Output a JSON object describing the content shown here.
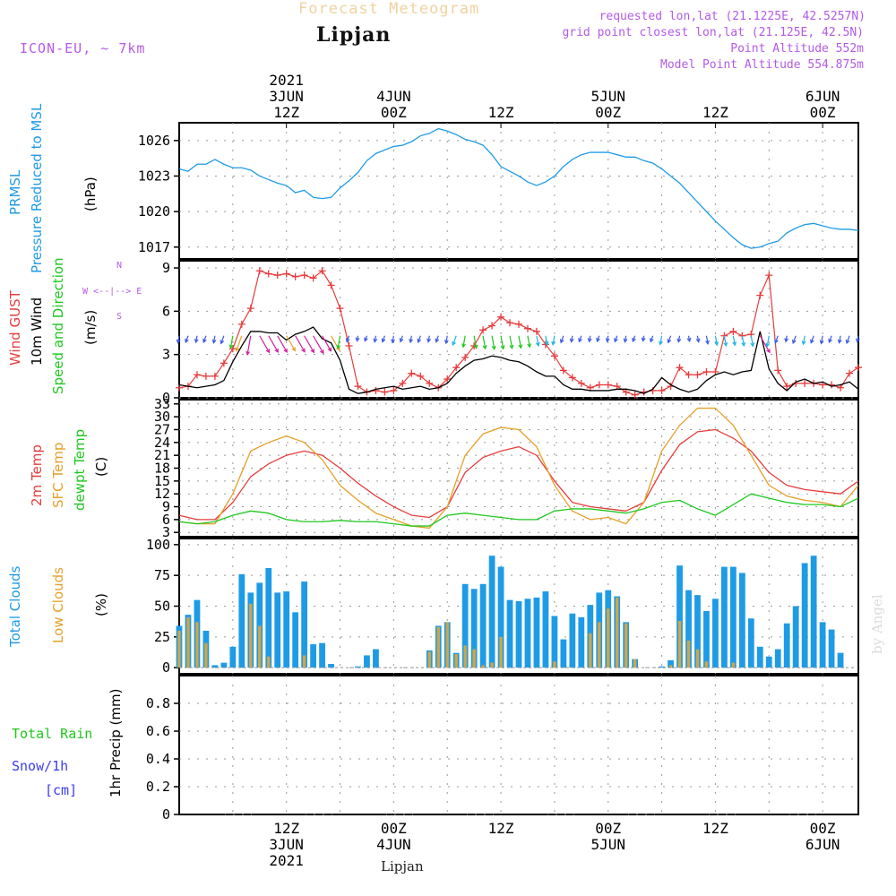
{
  "header": {
    "title": "Forecast Meteogram",
    "location": "Lipjan",
    "model": "ICON-EU, ~ 7km",
    "requested": "requested lon,lat (21.1225E, 42.5257N)",
    "closest": "grid point closest lon,lat (21.125E, 42.5N)",
    "altitude": "Point Altitude 552m",
    "model_altitude": "Model Point Altitude 554.875m",
    "watermark": "by Angel",
    "footer_location": "Lipjan"
  },
  "colors": {
    "pressure": "#1e9be6",
    "gust": "#e63c3c",
    "wind": "#000000",
    "temp2m": "#e63c3c",
    "sfc": "#e6a028",
    "dewpt": "#1ec81e",
    "total_clouds": "#1e9be6",
    "low_clouds": "#d2a546",
    "purple": "#b45ae6",
    "rain": "#1ec81e",
    "snow": "#3c3cf0"
  },
  "time_axis": {
    "top_labels": [
      {
        "t": 12,
        "lines": [
          "2021",
          "3JUN",
          "12Z"
        ]
      },
      {
        "t": 24,
        "lines": [
          "4JUN",
          "00Z"
        ]
      },
      {
        "t": 36,
        "lines": [
          "12Z"
        ]
      },
      {
        "t": 48,
        "lines": [
          "5JUN",
          "00Z"
        ]
      },
      {
        "t": 60,
        "lines": [
          "12Z"
        ]
      },
      {
        "t": 72,
        "lines": [
          "6JUN",
          "00Z"
        ]
      }
    ],
    "bottom_labels": [
      {
        "t": 12,
        "lines": [
          "12Z",
          "3JUN",
          "2021"
        ]
      },
      {
        "t": 24,
        "lines": [
          "00Z",
          "4JUN"
        ]
      },
      {
        "t": 36,
        "lines": [
          "12Z"
        ]
      },
      {
        "t": 48,
        "lines": [
          "00Z",
          "5JUN"
        ]
      },
      {
        "t": 60,
        "lines": [
          "12Z"
        ]
      },
      {
        "t": 72,
        "lines": [
          "00Z",
          "6JUN"
        ]
      }
    ]
  },
  "panel_labels": {
    "pressure": [
      "PRMSL",
      "Pressure Reduced to MSL",
      "(hPa)"
    ],
    "wind": [
      "Wind GUST",
      "10m Wind",
      "Speed and Direction",
      "(m/s)"
    ],
    "compass": [
      "N",
      "W <--|--> E",
      "S"
    ],
    "temp": [
      "2m Temp",
      "SFC Temp",
      "dewpt Temp",
      "(C)"
    ],
    "clouds": [
      "Total Clouds",
      "Low Clouds",
      "(%)"
    ],
    "precip_axis": "1hr Precip (mm)",
    "rain": "Total  Rain",
    "snow": "Snow/1h",
    "snow_unit": "[cm]"
  },
  "chart_data": [
    {
      "type": "line",
      "name": "PRMSL",
      "ylabel": "(hPa)",
      "ylim": [
        1016,
        1027.5
      ],
      "yticks": [
        1017,
        1020,
        1023,
        1026
      ],
      "x_unit": "hours from 3JUN 00Z",
      "x": [
        0,
        1,
        2,
        3,
        4,
        5,
        6,
        7,
        8,
        9,
        10,
        11,
        12,
        13,
        14,
        15,
        16,
        17,
        18,
        19,
        20,
        21,
        22,
        23,
        24,
        25,
        26,
        27,
        28,
        29,
        30,
        31,
        32,
        33,
        34,
        35,
        36,
        37,
        38,
        39,
        40,
        41,
        42,
        43,
        44,
        45,
        46,
        47,
        48,
        49,
        50,
        51,
        52,
        53,
        54,
        55,
        56,
        57,
        58,
        59,
        60,
        61,
        62,
        63,
        64,
        65,
        66,
        67,
        68,
        69,
        70,
        71,
        72,
        73,
        74,
        75,
        76
      ],
      "values": [
        1023.6,
        1023.4,
        1024.0,
        1024.0,
        1024.4,
        1024.0,
        1023.7,
        1023.7,
        1023.5,
        1023.0,
        1022.7,
        1022.4,
        1022.2,
        1021.6,
        1021.8,
        1021.2,
        1021.1,
        1021.2,
        1022.0,
        1022.6,
        1023.3,
        1024.3,
        1024.9,
        1025.2,
        1025.5,
        1025.6,
        1025.9,
        1026.4,
        1026.6,
        1027.0,
        1026.8,
        1026.5,
        1026.1,
        1025.9,
        1025.6,
        1024.8,
        1023.8,
        1023.4,
        1023.0,
        1022.5,
        1022.2,
        1022.5,
        1023.0,
        1023.8,
        1024.4,
        1024.8,
        1025.0,
        1025.0,
        1025.0,
        1024.8,
        1024.6,
        1024.6,
        1024.3,
        1024.1,
        1023.6,
        1023.0,
        1022.4,
        1021.6,
        1020.8,
        1020.0,
        1019.2,
        1018.5,
        1017.8,
        1017.2,
        1016.9,
        1017.0,
        1017.3,
        1017.5,
        1018.2,
        1018.6,
        1018.9,
        1019.0,
        1018.8,
        1018.6,
        1018.5,
        1018.5,
        1018.4
      ]
    },
    {
      "type": "line",
      "name": "Wind",
      "ylabel": "(m/s)",
      "ylim": [
        0,
        9.5
      ],
      "yticks": [
        0,
        3,
        6,
        9
      ],
      "x_unit": "hours from 3JUN 00Z",
      "series": [
        {
          "name": "Wind GUST",
          "marker": "+",
          "x": [
            0,
            1,
            2,
            3,
            4,
            5,
            6,
            7,
            8,
            9,
            10,
            11,
            12,
            13,
            14,
            15,
            16,
            17,
            18,
            19,
            20,
            21,
            22,
            23,
            24,
            25,
            26,
            27,
            28,
            29,
            30,
            31,
            32,
            33,
            34,
            35,
            36,
            37,
            38,
            39,
            40,
            41,
            42,
            43,
            44,
            45,
            46,
            47,
            48,
            49,
            50,
            51,
            52,
            53,
            54,
            55,
            56,
            57,
            58,
            59,
            60,
            61,
            62,
            63,
            64,
            65,
            66,
            67,
            68,
            69,
            70,
            71,
            72,
            73,
            74,
            75,
            76
          ],
          "values": [
            0.7,
            0.8,
            1.6,
            1.5,
            1.5,
            2.4,
            3.4,
            5.1,
            6.2,
            8.8,
            8.6,
            8.5,
            8.6,
            8.4,
            8.5,
            8.3,
            8.8,
            7.8,
            6.2,
            3.6,
            0.8,
            0.4,
            0.5,
            0.4,
            0.5,
            1.0,
            1.7,
            1.5,
            1.0,
            0.7,
            1.3,
            2.1,
            2.8,
            3.6,
            4.7,
            5.0,
            5.6,
            5.2,
            5.1,
            4.8,
            4.6,
            3.7,
            2.9,
            1.9,
            1.4,
            1.0,
            0.7,
            0.9,
            0.9,
            0.8,
            0.4,
            0.2,
            0.4,
            0.5,
            0.5,
            0.8,
            2.1,
            1.6,
            1.6,
            1.8,
            1.8,
            4.3,
            4.6,
            4.3,
            4.4,
            7.1,
            8.5,
            1.9,
            0.8,
            1.0,
            1.0,
            1.0,
            0.9,
            0.9,
            0.7,
            1.7,
            2.1
          ]
        },
        {
          "name": "10m Wind",
          "x": [
            0,
            1,
            2,
            3,
            4,
            5,
            6,
            7,
            8,
            9,
            10,
            11,
            12,
            13,
            14,
            15,
            16,
            17,
            18,
            19,
            20,
            21,
            22,
            23,
            24,
            25,
            26,
            27,
            28,
            29,
            30,
            31,
            32,
            33,
            34,
            35,
            36,
            37,
            38,
            39,
            40,
            41,
            42,
            43,
            44,
            45,
            46,
            47,
            48,
            49,
            50,
            51,
            52,
            53,
            54,
            55,
            56,
            57,
            58,
            59,
            60,
            61,
            62,
            63,
            64,
            65,
            66,
            67,
            68,
            69,
            70,
            71,
            72,
            73,
            74,
            75,
            76
          ],
          "values": [
            0.9,
            0.8,
            0.7,
            0.8,
            0.9,
            1.2,
            2.5,
            3.6,
            4.6,
            4.6,
            4.5,
            4.5,
            4.0,
            4.4,
            4.6,
            4.9,
            4.1,
            3.8,
            2.6,
            0.6,
            0.3,
            0.4,
            0.6,
            0.7,
            0.8,
            0.6,
            0.7,
            0.8,
            0.6,
            0.7,
            1.0,
            1.7,
            2.2,
            2.6,
            2.7,
            2.9,
            2.8,
            2.6,
            2.5,
            2.2,
            1.8,
            1.5,
            1.5,
            0.9,
            0.6,
            0.6,
            0.5,
            0.5,
            0.5,
            0.6,
            0.6,
            0.5,
            0.3,
            0.6,
            1.4,
            0.9,
            0.6,
            0.4,
            0.6,
            1.2,
            1.6,
            1.8,
            1.6,
            1.8,
            1.9,
            4.6,
            2.0,
            1.0,
            0.5,
            1.1,
            1.3,
            1.0,
            1.1,
            0.8,
            0.9,
            1.1,
            0.6
          ]
        }
      ],
      "arrows": {
        "note": "hourly wind direction arrows at 10m wind height; colors vary with speed (blue/cyan/green/orange/magenta)"
      }
    },
    {
      "type": "line",
      "name": "Temperature",
      "ylabel": "(C)",
      "ylim": [
        2,
        34
      ],
      "yticks": [
        3,
        6,
        9,
        12,
        15,
        18,
        21,
        24,
        27,
        30,
        33
      ],
      "x_unit": "hours from 3JUN 00Z",
      "series": [
        {
          "name": "2m Temp",
          "x": [
            0,
            2,
            4,
            6,
            8,
            10,
            12,
            14,
            16,
            18,
            20,
            22,
            24,
            26,
            28,
            30,
            32,
            34,
            36,
            38,
            40,
            42,
            44,
            46,
            48,
            50,
            52,
            54,
            56,
            58,
            60,
            62,
            64,
            66,
            68,
            70,
            72,
            74,
            76
          ],
          "values": [
            7.0,
            6.0,
            6.0,
            10.0,
            16.0,
            19.0,
            21.0,
            22.0,
            21.0,
            18.0,
            14.5,
            11.5,
            9.0,
            7.0,
            6.5,
            9.0,
            17.0,
            20.5,
            22.0,
            23.0,
            21.0,
            15.0,
            10.0,
            9.0,
            8.5,
            8.0,
            10.0,
            17.5,
            23.5,
            26.5,
            27.0,
            25.0,
            22.0,
            17.0,
            14.0,
            13.0,
            12.5,
            12.0,
            15.0
          ]
        },
        {
          "name": "SFC Temp",
          "x": [
            0,
            2,
            4,
            6,
            8,
            10,
            12,
            14,
            16,
            18,
            20,
            22,
            24,
            26,
            28,
            30,
            32,
            34,
            36,
            38,
            40,
            42,
            44,
            46,
            48,
            50,
            52,
            54,
            56,
            58,
            60,
            62,
            64,
            66,
            68,
            70,
            72,
            74,
            76
          ],
          "values": [
            5.5,
            5.0,
            5.0,
            12.0,
            22.0,
            24.0,
            25.5,
            24.0,
            20.0,
            14.0,
            10.5,
            7.5,
            6.0,
            4.5,
            4.0,
            9.0,
            21.0,
            26.0,
            27.5,
            27.0,
            23.0,
            14.0,
            8.0,
            6.0,
            6.5,
            5.0,
            10.0,
            22.0,
            28.0,
            32.0,
            32.0,
            28.0,
            21.0,
            14.0,
            11.5,
            10.5,
            10.0,
            9.0,
            14.0
          ]
        },
        {
          "name": "dewpt Temp",
          "x": [
            0,
            2,
            4,
            6,
            8,
            10,
            12,
            14,
            16,
            18,
            20,
            22,
            24,
            26,
            28,
            30,
            32,
            34,
            36,
            38,
            40,
            42,
            44,
            46,
            48,
            50,
            52,
            54,
            56,
            58,
            60,
            62,
            64,
            66,
            68,
            70,
            72,
            74,
            76
          ],
          "values": [
            5.5,
            5.0,
            5.5,
            7.0,
            8.0,
            7.5,
            6.0,
            5.5,
            5.5,
            5.8,
            5.5,
            5.5,
            5.0,
            4.5,
            4.5,
            7.0,
            7.5,
            7.0,
            6.5,
            6.0,
            6.0,
            8.0,
            8.5,
            8.5,
            8.0,
            7.5,
            8.5,
            10.0,
            10.5,
            8.5,
            7.0,
            9.5,
            12.0,
            11.0,
            10.0,
            9.5,
            9.5,
            9.0,
            11.0
          ]
        }
      ]
    },
    {
      "type": "bar",
      "name": "Clouds",
      "ylabel": "(%)",
      "ylim": [
        -5,
        105
      ],
      "yticks": [
        0,
        25,
        50,
        75,
        100
      ],
      "x_unit": "hours from 3JUN 00Z",
      "x": [
        0,
        1,
        2,
        3,
        4,
        5,
        6,
        7,
        8,
        9,
        10,
        11,
        12,
        13,
        14,
        15,
        16,
        17,
        18,
        19,
        20,
        21,
        22,
        23,
        24,
        25,
        26,
        27,
        28,
        29,
        30,
        31,
        32,
        33,
        34,
        35,
        36,
        37,
        38,
        39,
        40,
        41,
        42,
        43,
        44,
        45,
        46,
        47,
        48,
        49,
        50,
        51,
        52,
        53,
        54,
        55,
        56,
        57,
        58,
        59,
        60,
        61,
        62,
        63,
        64,
        65,
        66,
        67,
        68,
        69,
        70,
        71,
        72,
        73,
        74,
        75,
        76
      ],
      "series": [
        {
          "name": "Total Clouds",
          "values": [
            34,
            43,
            55,
            30,
            2,
            4,
            17,
            76,
            61,
            69,
            81,
            61,
            62,
            45,
            70,
            19,
            20,
            3,
            0,
            0,
            1,
            10,
            15,
            0,
            0,
            0,
            0,
            0,
            14,
            34,
            37,
            12,
            68,
            64,
            68,
            91,
            82,
            55,
            54,
            56,
            57,
            62,
            42,
            23,
            44,
            41,
            51,
            61,
            63,
            58,
            37,
            7,
            0,
            0,
            1,
            6,
            83,
            63,
            59,
            46,
            56,
            82,
            82,
            77,
            40,
            17,
            9,
            15,
            36,
            50,
            85,
            91,
            37,
            31,
            12,
            0,
            0
          ]
        },
        {
          "name": "Low Clouds",
          "values": [
            30,
            41,
            37,
            20,
            0,
            0,
            0,
            0,
            52,
            34,
            9,
            0,
            0,
            0,
            10,
            0,
            0,
            0,
            0,
            0,
            0,
            0,
            0,
            0,
            0,
            0,
            0,
            0,
            13,
            33,
            37,
            11,
            18,
            15,
            2,
            4,
            25,
            0,
            0,
            0,
            0,
            0,
            5,
            0,
            0,
            0,
            28,
            37,
            48,
            57,
            36,
            7,
            0,
            0,
            0,
            2,
            38,
            22,
            15,
            5,
            0,
            0,
            4,
            0,
            0,
            0,
            0,
            0,
            0,
            0,
            0,
            0,
            0,
            0,
            0,
            0,
            0
          ]
        }
      ]
    },
    {
      "type": "bar",
      "name": "1hr Precip",
      "ylabel": "1hr Precip (mm)",
      "ylim": [
        0,
        1.0
      ],
      "yticks": [
        0,
        0.2,
        0.4,
        0.6,
        0.8
      ],
      "series": [
        {
          "name": "Total Rain",
          "values": []
        },
        {
          "name": "Snow/1h",
          "values": []
        }
      ]
    }
  ]
}
